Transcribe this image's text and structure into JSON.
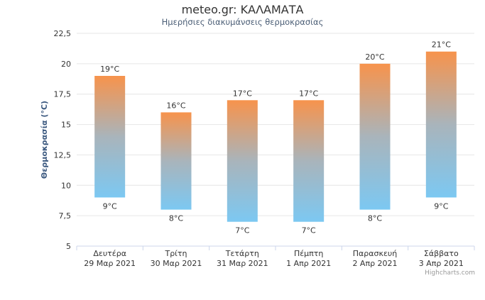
{
  "header": {
    "title": "meteo.gr: ΚΑΛΑΜΑΤΑ",
    "subtitle": "Ημερήσιες διακυμάνσεις θερμοκρασίας"
  },
  "credits": "Highcharts.com",
  "colors": {
    "bar_top": "#f7934c",
    "bar_mid": "#a9b4bb",
    "bar_bottom": "#7cc8f2",
    "grid": "#e6e6e6"
  },
  "chart_data": {
    "type": "bar",
    "title": "meteo.gr: ΚΑΛΑΜΑΤΑ",
    "subtitle": "Ημερήσιες διακυμάνσεις θερμοκρασίας",
    "ylabel": "Θερμοκρασία (°C)",
    "xlabel": "",
    "ylim": [
      5,
      22.5
    ],
    "yticks": [
      5,
      7.5,
      10,
      12.5,
      15,
      17.5,
      20,
      22.5
    ],
    "ytick_labels": [
      "5",
      "7,5",
      "10",
      "12,5",
      "15",
      "17,5",
      "20",
      "22,5"
    ],
    "grid": true,
    "categories": [
      [
        "Δευτέρα",
        "29 Μαρ 2021"
      ],
      [
        "Τρίτη",
        "30 Μαρ 2021"
      ],
      [
        "Τετάρτη",
        "31 Μαρ 2021"
      ],
      [
        "Πέμπτη",
        "1 Απρ 2021"
      ],
      [
        "Παρασκευή",
        "2 Απρ 2021"
      ],
      [
        "Σάββατο",
        "3 Απρ 2021"
      ]
    ],
    "series": [
      {
        "low": [
          9,
          8,
          7,
          7,
          8,
          9
        ],
        "high": [
          19,
          16,
          17,
          17,
          20,
          21
        ]
      }
    ],
    "low_labels": [
      "9°C",
      "8°C",
      "7°C",
      "7°C",
      "8°C",
      "9°C"
    ],
    "high_labels": [
      "19°C",
      "16°C",
      "17°C",
      "17°C",
      "20°C",
      "21°C"
    ]
  }
}
